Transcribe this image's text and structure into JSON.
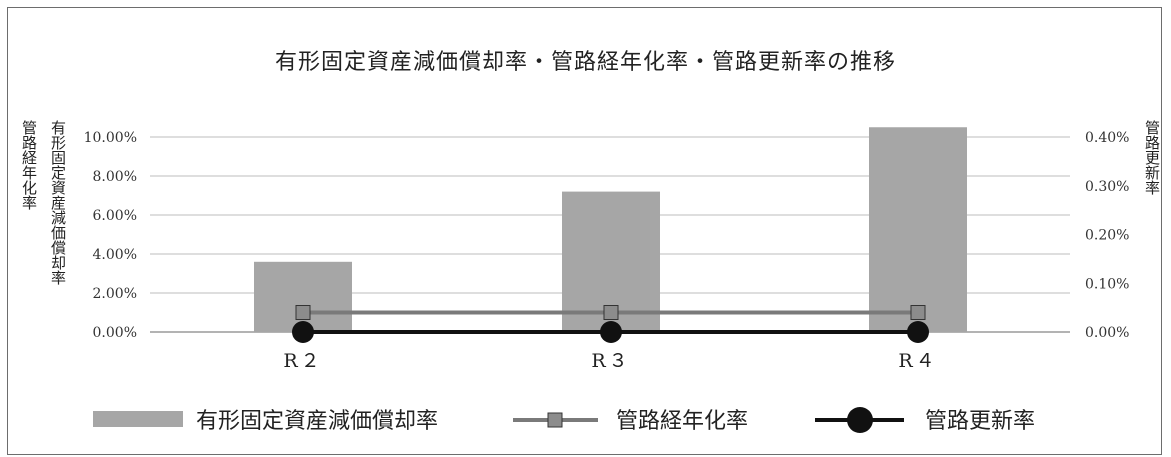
{
  "chart_data": {
    "type": "bar",
    "title": "有形固定資産減価償却率・管路経年化率・管路更新率の推移",
    "categories": [
      "R２",
      "R３",
      "R４"
    ],
    "y_left_label_a": "管路経年化率",
    "y_left_label_b": "有形固定資産減価償却率",
    "y_right_label": "管路更新率",
    "y_left_ticks": [
      "0.00%",
      "2.00%",
      "4.00%",
      "6.00%",
      "8.00%",
      "10.00%"
    ],
    "y_right_ticks": [
      "0.00%",
      "0.10%",
      "0.20%",
      "0.30%",
      "0.40%"
    ],
    "ylim_left": [
      0,
      10
    ],
    "ylim_right": [
      0,
      0.4
    ],
    "grid": true,
    "legend_position": "bottom",
    "series": [
      {
        "name": "有形固定資産減価償却率",
        "kind": "bar",
        "axis": "left",
        "values": [
          3.6,
          7.2,
          10.5
        ],
        "color": "#a6a6a6"
      },
      {
        "name": "管路経年化率",
        "kind": "line",
        "axis": "left",
        "marker": "square",
        "values": [
          1.0,
          1.0,
          1.0
        ],
        "color": "#7a7a7a"
      },
      {
        "name": "管路更新率",
        "kind": "line",
        "axis": "right",
        "marker": "circle",
        "values": [
          0.0,
          0.0,
          0.0
        ],
        "color": "#111111"
      }
    ]
  }
}
